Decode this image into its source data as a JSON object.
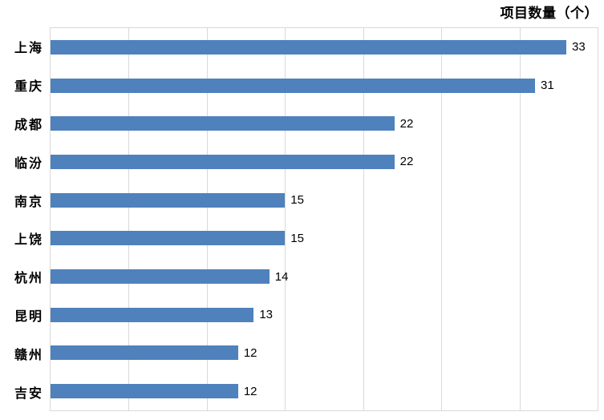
{
  "chart_data": {
    "type": "bar",
    "orientation": "horizontal",
    "title": "项目数量（个）",
    "categories": [
      "上海",
      "重庆",
      "成都",
      "临汾",
      "南京",
      "上饶",
      "杭州",
      "昆明",
      "赣州",
      "吉安"
    ],
    "values": [
      33,
      31,
      22,
      22,
      15,
      15,
      14,
      13,
      12,
      12
    ],
    "xlabel": "",
    "ylabel": "",
    "xlim": [
      0,
      35
    ],
    "gridline_step": 5,
    "grid": "vertical-only",
    "legend": "none",
    "data_labels": true,
    "colors": {
      "bar": "#4F81BD",
      "gridline": "#D9D9D9",
      "label_text": "#000000",
      "background": "#FFFFFF"
    }
  }
}
